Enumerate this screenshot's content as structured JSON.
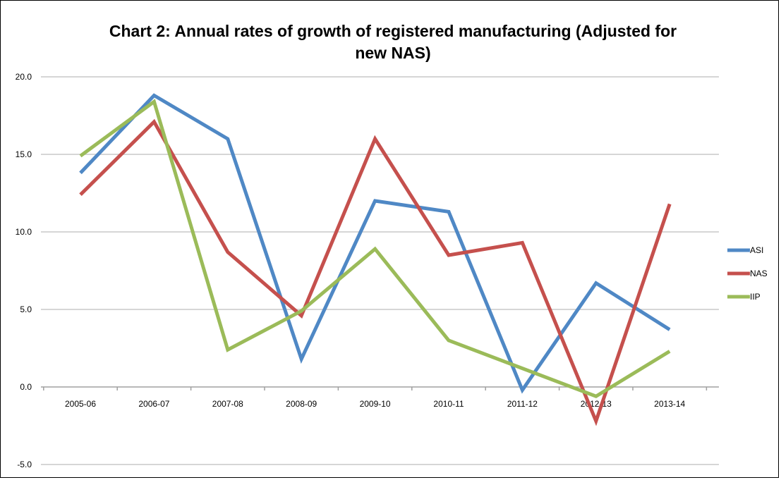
{
  "chart_data": {
    "type": "line",
    "title": "Chart 2: Annual rates of growth of registered manufacturing (Adjusted for new NAS)",
    "title_lines": [
      "Chart 2: Annual rates of growth of registered manufacturing (Adjusted for",
      "new NAS)"
    ],
    "xlabel": "",
    "ylabel": "",
    "categories": [
      "2005-06",
      "2006-07",
      "2007-08",
      "2008-09",
      "2009-10",
      "2010-11",
      "2011-12",
      "2012-13",
      "2013-14"
    ],
    "ylim": [
      -5,
      20
    ],
    "yticks": [
      "20.0",
      "15.0",
      "10.0",
      "5.0",
      "0.0",
      "-5.0"
    ],
    "ytick_values": [
      20,
      15,
      10,
      5,
      0,
      -5
    ],
    "grid": true,
    "legend": "right",
    "series": [
      {
        "name": "ASI",
        "color": "#4f88c5",
        "values": [
          13.8,
          18.8,
          16.0,
          1.8,
          12.0,
          11.3,
          -0.2,
          6.7,
          3.7
        ]
      },
      {
        "name": "NAS",
        "color": "#c5504d",
        "values": [
          12.4,
          17.1,
          8.7,
          4.6,
          16.0,
          8.5,
          9.3,
          -2.2,
          11.8
        ]
      },
      {
        "name": "IIP",
        "color": "#9bbb59",
        "values": [
          14.9,
          18.4,
          2.4,
          4.9,
          8.9,
          3.0,
          1.2,
          -0.6,
          2.3
        ]
      }
    ]
  }
}
